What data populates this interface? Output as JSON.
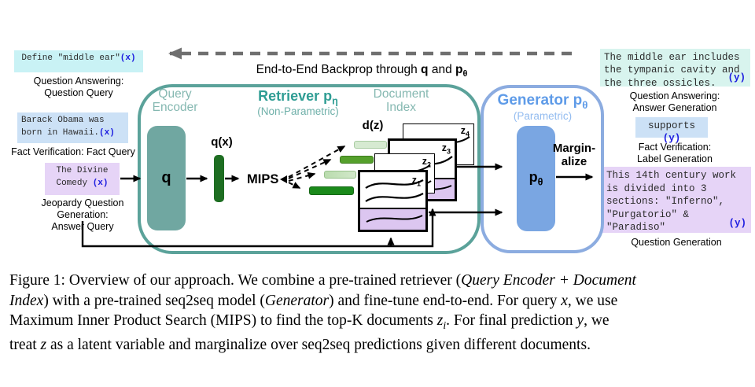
{
  "colors": {
    "teal_border": "#5BA29A",
    "teal_fill": "#70A7A1",
    "teal_label": "#85B8B1",
    "teal_title": "#2F9D94",
    "teal_subtitle": "#6FB0A9",
    "blue_border": "#8CACE0",
    "blue_fill": "#7AA6E2",
    "blue_title": "#5E9BE8",
    "blue_subtitle": "#93BCF0",
    "green_bar_q": "#1E6E22",
    "green_dark": "#1B8A1B",
    "green_mid": "#55A02C",
    "green_light": "#D6EAD1",
    "green_light2": "#BADCAE",
    "purple_bg": "#E6D4F7",
    "purple_doc": "#DCC6F0",
    "cyan_bg": "#C9F2F5",
    "mint_bg": "#D8F4EE",
    "blue_bg": "#CCE1F6",
    "token_blue": "#1C1CE0",
    "arrow_gray": "#6F6F6F"
  },
  "backprop": {
    "segments": [
      {
        "t": "End-to-End Backprop through "
      },
      {
        "t": "q",
        "b": 1
      },
      {
        "t": " and "
      },
      {
        "t": "p",
        "b": 1
      },
      {
        "t": "θ",
        "b": 1,
        "sub": 1
      }
    ]
  },
  "left_column": {
    "qa": {
      "text": "Define \"middle ear\"",
      "token": "(x)",
      "label": "Question Answering:\nQuestion Query"
    },
    "fact": {
      "text": "Barack Obama was\nborn in Hawaii.",
      "token": "(x)",
      "label": "Fact Verification: Fact Query"
    },
    "jeopardy": {
      "text": "The Divine\nComedy ",
      "token": "(x)",
      "label": "Jeopardy Question\nGeneration:\nAnswer Query"
    }
  },
  "retriever": {
    "query_encoder_label": "Query\nEncoder",
    "title": [
      {
        "t": "Retriever p"
      },
      {
        "t": "η",
        "sub": 1
      }
    ],
    "subtitle": "(Non-Parametric)",
    "doc_index_label": "Document\nIndex",
    "q_label": "q",
    "qx_label": "q(x)",
    "mips_label": "MIPS",
    "dz_label": "d(z)"
  },
  "documents": [
    {
      "label": [
        {
          "t": "z"
        },
        {
          "t": "4",
          "sub": 1
        }
      ]
    },
    {
      "label": [
        {
          "t": "z"
        },
        {
          "t": "3",
          "sub": 1
        }
      ]
    },
    {
      "label": [
        {
          "t": "z"
        },
        {
          "t": "2",
          "sub": 1
        }
      ]
    },
    {
      "label": [
        {
          "t": "z"
        },
        {
          "t": "1",
          "sub": 1
        }
      ]
    }
  ],
  "generator": {
    "title": [
      {
        "t": "Generator p"
      },
      {
        "t": "θ",
        "sub": 1
      }
    ],
    "subtitle": "(Parametric)",
    "p_label": [
      {
        "t": "p",
        "b": 1
      },
      {
        "t": "θ",
        "b": 1,
        "sub": 1
      }
    ],
    "marginalize": "Margin-\nalize"
  },
  "right_column": {
    "qa_gen": {
      "text": "The middle ear includes\nthe tympanic cavity and\nthe three ossicles.",
      "token": "(y)",
      "label": "Question Answering:\nAnswer Generation"
    },
    "fact_gen": {
      "text": "supports ",
      "token": "(y)",
      "label": "Fact Verification:\nLabel Generation"
    },
    "q_gen": {
      "text": "This 14th century work\nis divided into 3\nsections: \"Inferno\",\n\"Purgatorio\" &\n\"Paradiso\"",
      "token": "(y)",
      "label": "Question Generation"
    }
  },
  "caption": {
    "lines": [
      [
        {
          "t": "Figure 1: Overview of our approach. We combine a pre-trained retriever ("
        },
        {
          "t": "Query Encoder + Document",
          "i": 1
        }
      ],
      [
        {
          "t": "Index",
          "i": 1
        },
        {
          "t": ") with a pre-trained seq2seq model ("
        },
        {
          "t": "Generator",
          "i": 1
        },
        {
          "t": ") and fine-tune end-to-end. For query "
        },
        {
          "t": "x",
          "i": 1
        },
        {
          "t": ", we use"
        }
      ],
      [
        {
          "t": "Maximum Inner Product Search (MIPS) to find the top-K documents "
        },
        {
          "t": "z",
          "i": 1
        },
        {
          "t": "i",
          "i": 1,
          "sub": 1
        },
        {
          "t": ". For final prediction "
        },
        {
          "t": "y",
          "i": 1
        },
        {
          "t": ", we"
        }
      ],
      [
        {
          "t": "treat "
        },
        {
          "t": "z",
          "i": 1
        },
        {
          "t": " as a latent variable and marginalize over seq2seq predictions given different documents."
        }
      ]
    ]
  }
}
